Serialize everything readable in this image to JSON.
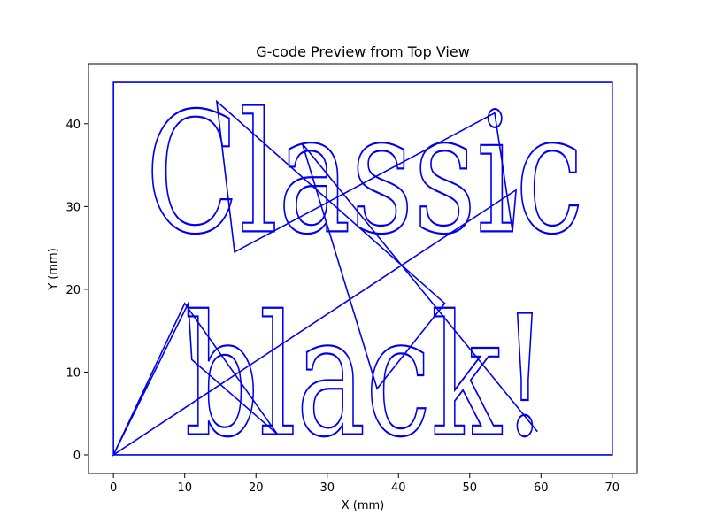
{
  "chart_data": {
    "type": "line",
    "title": "G-code Preview from Top View",
    "xlabel": "X (mm)",
    "ylabel": "Y (mm)",
    "xlim": [
      -3.5,
      73.5
    ],
    "ylim": [
      -2.25,
      47.25
    ],
    "xticks": [
      0,
      10,
      20,
      30,
      40,
      50,
      60,
      70
    ],
    "yticks": [
      0,
      10,
      20,
      30,
      40
    ],
    "grid": false,
    "color": "#0000ee",
    "series": [
      {
        "values": {
          "border": [
            [
              0,
              0
            ],
            [
              0,
              45
            ],
            [
              70,
              45
            ],
            [
              70,
              0
            ],
            [
              0,
              0
            ]
          ],
          "travel": [
            [
              0,
              0
            ],
            [
              10,
              18.3
            ],
            [
              23,
              2.5
            ],
            [
              11,
              11.5
            ],
            [
              10.5,
              18.3
            ],
            [
              0,
              0
            ],
            [
              56.5,
              32
            ],
            [
              56,
              27
            ],
            [
              53.5,
              41.3
            ],
            [
              17,
              24.5
            ],
            [
              14.5,
              42.7
            ],
            [
              46.5,
              18.3
            ],
            [
              37,
              8
            ],
            [
              26.5,
              37.6
            ],
            [
              59.5,
              2.8
            ]
          ],
          "text_line_1": {
            "text": "Classic",
            "x": 4.5,
            "y": 27
          },
          "text_line_2": {
            "text": "black!",
            "x": 10,
            "y": 2.5
          }
        }
      }
    ]
  }
}
